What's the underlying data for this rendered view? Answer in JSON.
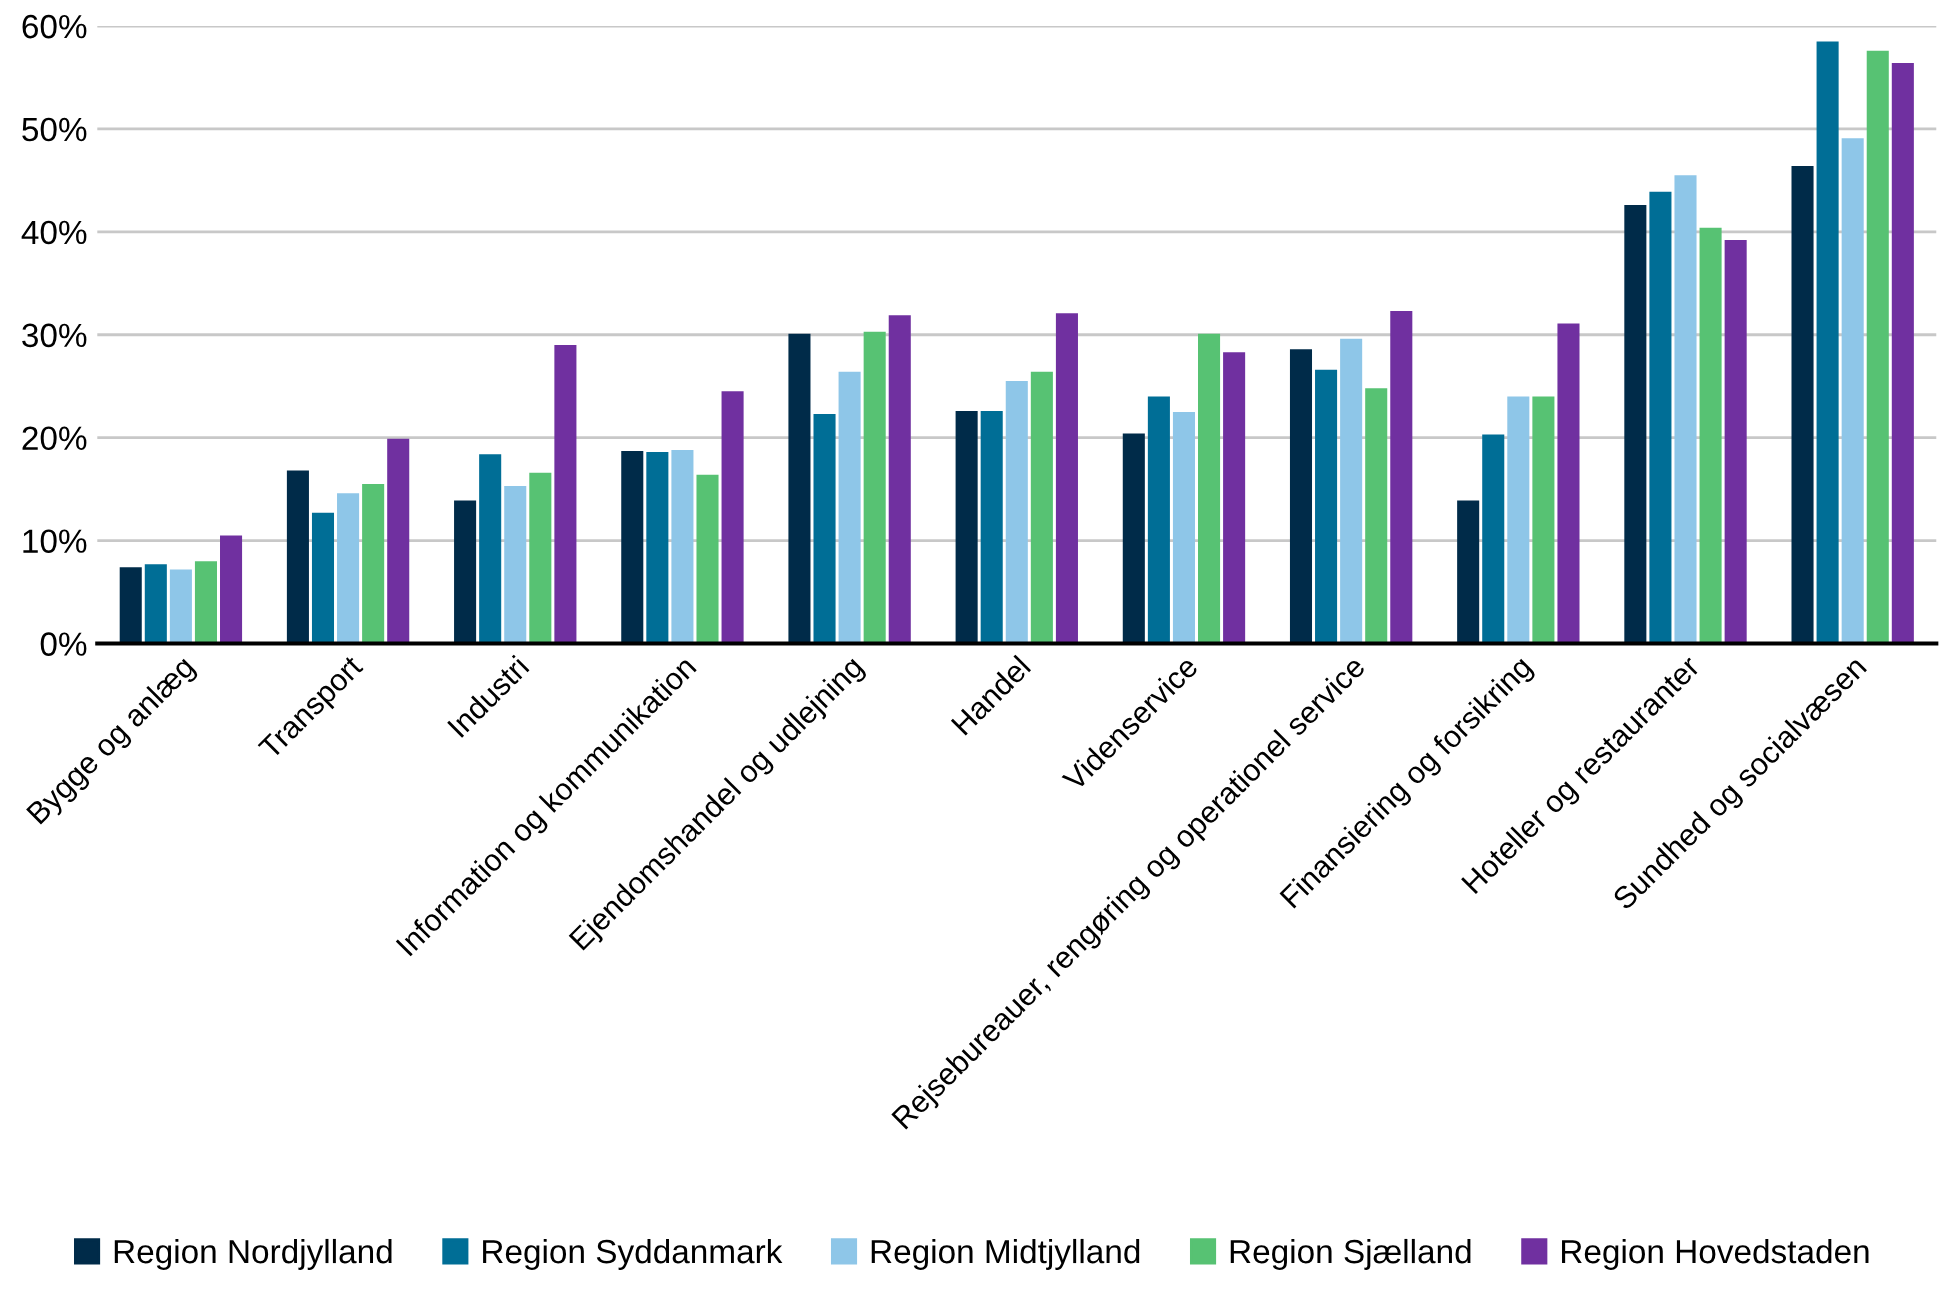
{
  "chart_data": {
    "type": "bar",
    "categories": [
      "Bygge og anlæg",
      "Transport",
      "Industri",
      "Information og kommunikation",
      "Ejendomshandel og udlejning",
      "Handel",
      "Videnservice",
      "Rejsebureauer, rengøring og operationel service",
      "Finansiering og forsikring",
      "Hoteller og restauranter",
      "Sundhed og socialvæsen"
    ],
    "series": [
      {
        "name": "Region Nordjylland",
        "color": "#002b49",
        "values": [
          7.4,
          16.8,
          13.9,
          18.7,
          30.1,
          22.6,
          20.4,
          28.6,
          13.9,
          42.6,
          46.4
        ]
      },
      {
        "name": "Region Syddanmark",
        "color": "#006e96",
        "values": [
          7.7,
          12.7,
          18.4,
          18.6,
          22.3,
          22.6,
          24.0,
          26.6,
          20.3,
          43.9,
          58.5
        ]
      },
      {
        "name": "Region Midtjylland",
        "color": "#8ec6e8",
        "values": [
          7.2,
          14.6,
          15.3,
          18.8,
          26.4,
          25.5,
          22.5,
          29.6,
          24.0,
          45.5,
          49.1
        ]
      },
      {
        "name": "Region Sjælland",
        "color": "#57c273",
        "values": [
          8.0,
          15.5,
          16.6,
          16.4,
          30.3,
          26.4,
          30.1,
          24.8,
          24.0,
          40.4,
          57.6
        ]
      },
      {
        "name": "Region Hovedstaden",
        "color": "#7030a0",
        "values": [
          10.5,
          19.9,
          29.0,
          24.5,
          31.9,
          32.1,
          28.3,
          32.3,
          31.1,
          39.2,
          56.4
        ]
      }
    ],
    "ylim": [
      0,
      60
    ],
    "yticks": [
      {
        "value": 0,
        "label": "0%"
      },
      {
        "value": 10,
        "label": "10%"
      },
      {
        "value": 20,
        "label": "20%"
      },
      {
        "value": 30,
        "label": "30%"
      },
      {
        "value": 40,
        "label": "40%"
      },
      {
        "value": 50,
        "label": "50%"
      },
      {
        "value": 60,
        "label": "60%"
      }
    ],
    "grid": "y",
    "legend": "bottom"
  }
}
